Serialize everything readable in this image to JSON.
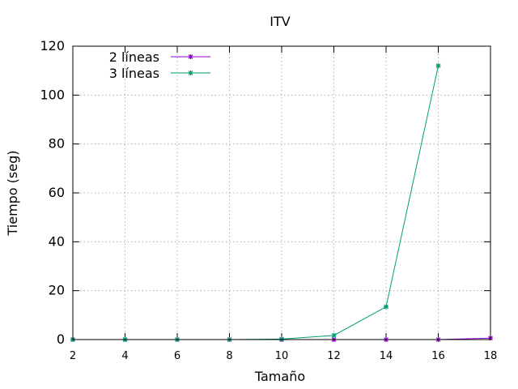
{
  "chart_data": {
    "type": "line",
    "title": "ITV",
    "xlabel": "Tamaño",
    "ylabel": "Tiempo (seg)",
    "xlim": [
      2,
      18
    ],
    "ylim": [
      0,
      120
    ],
    "x_ticks": [
      2,
      4,
      6,
      8,
      10,
      12,
      14,
      16,
      18
    ],
    "y_ticks": [
      0,
      20,
      40,
      60,
      80,
      100,
      120
    ],
    "grid": true,
    "legend_position": "top-left",
    "series": [
      {
        "name": "2 líneas",
        "color": "#9400d3",
        "marker": "star",
        "points": [
          [
            2,
            0
          ],
          [
            4,
            0
          ],
          [
            6,
            0
          ],
          [
            8,
            0
          ],
          [
            10,
            0
          ],
          [
            12,
            0
          ],
          [
            14,
            0
          ],
          [
            16,
            0
          ],
          [
            18,
            0.6
          ]
        ]
      },
      {
        "name": "3 líneas",
        "color": "#009e73",
        "marker": "star",
        "points": [
          [
            2,
            0
          ],
          [
            4,
            0
          ],
          [
            6,
            0
          ],
          [
            8,
            0
          ],
          [
            10,
            0.2
          ],
          [
            12,
            1.7
          ],
          [
            14,
            13.4
          ],
          [
            16,
            112
          ]
        ]
      }
    ]
  }
}
